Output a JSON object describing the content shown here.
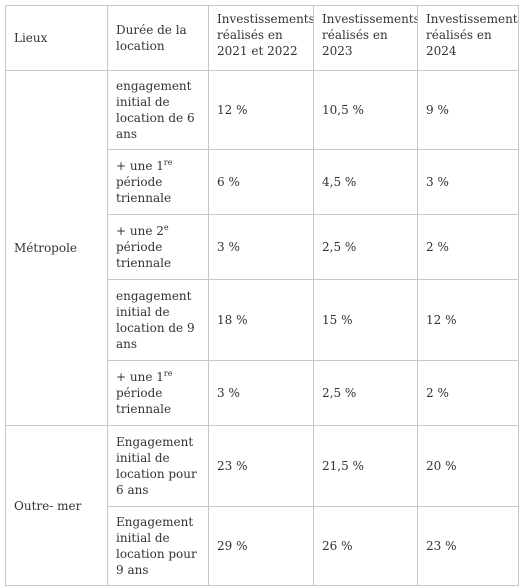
{
  "header": {
    "lieux": "Lieux",
    "duree": "Durée de la location",
    "inv_2021_2022": "Investissements réalisés en 2021 et 2022",
    "inv_2023": "Investissements réalisés en 2023",
    "inv_2024": "Investissements réalisés en 2024"
  },
  "groups": {
    "metropole": "Métropole",
    "outremer": "Outre- mer"
  },
  "rows": [
    {
      "duree": "engagement initial de location de 6 ans",
      "v2122": "12 %",
      "v23": "10,5 %",
      "v24": "9 %"
    },
    {
      "duree_pre": "+ une 1",
      "duree_sup": "re",
      "duree_post": " période triennale",
      "v2122": "6 %",
      "v23": "4,5 %",
      "v24": "3 %"
    },
    {
      "duree_pre": "+ une 2",
      "duree_sup": "e",
      "duree_post": " période triennale",
      "v2122": "3 %",
      "v23": "2,5 %",
      "v24": "2 %"
    },
    {
      "duree": "engagement initial de location de 9 ans",
      "v2122": "18 %",
      "v23": "15 %",
      "v24": "12 %"
    },
    {
      "duree_pre": "+ une 1",
      "duree_sup": "re",
      "duree_post": " période triennale",
      "v2122": "3 %",
      "v23": "2,5 %",
      "v24": "2 %"
    },
    {
      "duree": "Engagement initial de location pour 6 ans",
      "v2122": "23 %",
      "v23": "21,5 %",
      "v24": "20 %"
    },
    {
      "duree": "Engagement initial de location pour 9 ans",
      "v2122": "29 %",
      "v23": "26 %",
      "v24": "23 %"
    }
  ]
}
